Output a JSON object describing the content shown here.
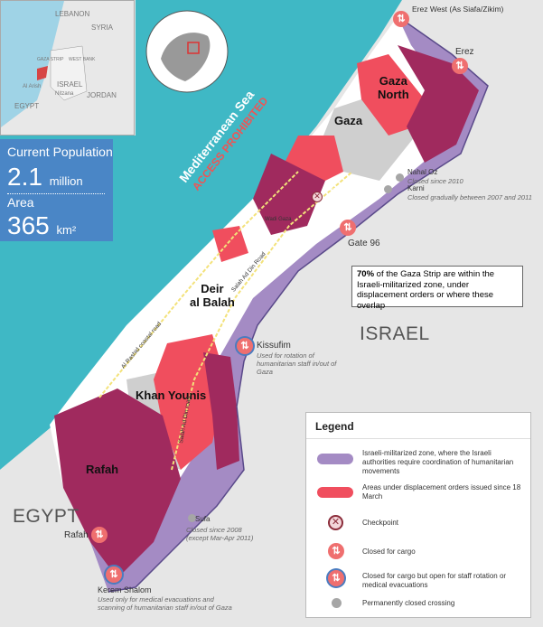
{
  "inset": {
    "labels": {
      "lebanon": "LEBANON",
      "syria": "SYRIA",
      "gaza_strip": "GAZA STRIP",
      "west_bank": "WEST BANK",
      "israel": "ISRAEL",
      "jordan": "JORDAN",
      "egypt": "EGYPT",
      "al_arish": "Al Arish",
      "nitzana": "Nitzana"
    }
  },
  "stats": {
    "population_label": "Current Population",
    "population_value": "2.1",
    "population_unit": "million",
    "area_label": "Area",
    "area_value": "365",
    "area_unit": "km²"
  },
  "sea": {
    "name": "Mediterranean Sea",
    "restriction": "ACCESS PROHIBITED"
  },
  "countries": {
    "israel": "ISRAEL",
    "egypt": "EGYPT"
  },
  "governorates": {
    "gaza_north": "Gaza\nNorth",
    "gaza": "Gaza",
    "deir_al_balah": "Deir\nal Balah",
    "khan_younis": "Khan Younis",
    "rafah": "Rafah"
  },
  "roads": {
    "coastal": "Al Rashid coastal road",
    "salah_ad_din_north": "Salah Ad Din Road",
    "salah_ad_din_south": "Salah Ad Din road",
    "wadi_gaza": "Wadi Gaza"
  },
  "crossings": {
    "erez_west": {
      "name": "Erez West (As Siafa/Zikim)"
    },
    "erez": {
      "name": "Erez"
    },
    "nahal_oz": {
      "name": "Nahal Oz",
      "note": "Closed since 2010"
    },
    "karni": {
      "name": "Karni",
      "note": "Closed gradually between 2007 and 2011"
    },
    "salah_checkpoint": {
      "name": "Salah Ad Din checkpoint"
    },
    "gate96": {
      "name": "Gate 96"
    },
    "kissufim": {
      "name": "Kissufim",
      "note": "Used for rotation of humanitarian staff in/out of Gaza"
    },
    "sufa": {
      "name": "Sufa",
      "note": "Closed since  2008 (except Mar-Apr 2011)"
    },
    "rafah": {
      "name": "Rafah"
    },
    "kerem_shalom": {
      "name": "Kerem Shalom",
      "note": "Used only for medical evacuations and scanning of humanitarian staff in/out of Gaza"
    }
  },
  "callout": {
    "percent": "70%",
    "text": " of the Gaza Strip are within the Israeli-militarized zone, under displacement orders or where these overlap"
  },
  "legend": {
    "title": "Legend",
    "items": [
      {
        "label": "Israeli-militarized zone, where the Israeli authorities require coordination of humanitarian movements"
      },
      {
        "label": "Areas under displacement orders issued since 18 March"
      },
      {
        "label": "Checkpoint"
      },
      {
        "label": "Closed for cargo"
      },
      {
        "label": "Closed for cargo but open for staff rotation or medical evacuations"
      },
      {
        "label": "Permanently closed crossing"
      }
    ]
  },
  "colors": {
    "sea": "#3fb8c5",
    "land_gaza": "#ffffff",
    "militarized": "#a48bc4",
    "displacement": "#f04e5e",
    "overlap": "#a02a5e",
    "built_up": "#cfcfcf",
    "stats_bg": "#4a86c6",
    "crossing_badge": "#ef6f6f"
  }
}
